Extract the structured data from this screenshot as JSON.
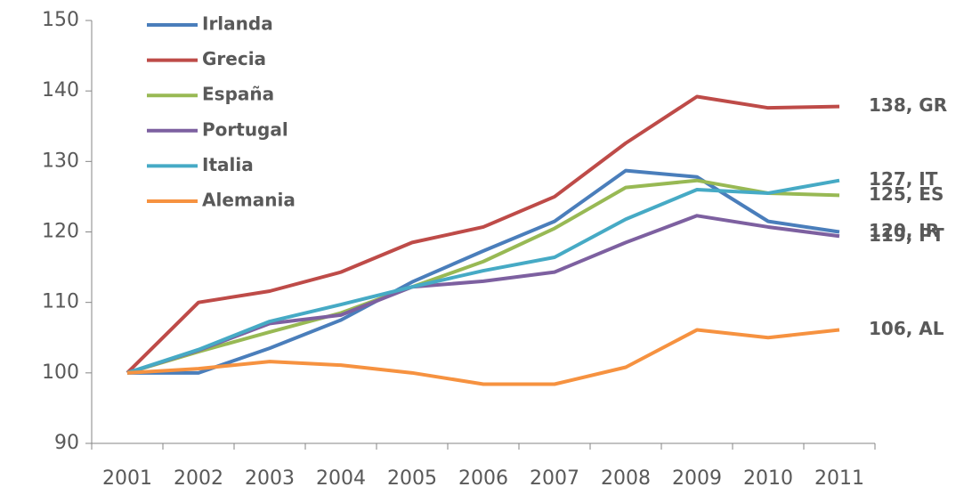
{
  "chart_data": {
    "type": "line",
    "categories": [
      "2001",
      "2002",
      "2003",
      "2004",
      "2005",
      "2006",
      "2007",
      "2008",
      "2009",
      "2010",
      "2011"
    ],
    "series": [
      {
        "name": "Irlanda",
        "color": "#4a7ebb",
        "values": [
          100,
          100,
          103.5,
          107.5,
          112.9,
          117.3,
          121.5,
          128.7,
          127.8,
          121.5,
          120
        ],
        "end_label": "120, IR"
      },
      {
        "name": "Grecia",
        "color": "#be4b48",
        "values": [
          100,
          110,
          111.6,
          114.3,
          118.5,
          120.7,
          125,
          132.6,
          139.2,
          137.6,
          137.8
        ],
        "end_label": "138, GR"
      },
      {
        "name": "España",
        "color": "#98b954",
        "values": [
          100,
          103,
          105.8,
          108.5,
          112.2,
          115.8,
          120.5,
          126.3,
          127.3,
          125.5,
          125.2
        ],
        "end_label": "125, ES"
      },
      {
        "name": "Portugal",
        "color": "#7d60a0",
        "values": [
          100,
          103.2,
          107,
          108.2,
          112.2,
          113,
          114.3,
          118.5,
          122.3,
          120.7,
          119.4
        ],
        "end_label": "119, PT"
      },
      {
        "name": "Italia",
        "color": "#46aac5",
        "values": [
          100,
          103.3,
          107.3,
          109.7,
          112.2,
          114.5,
          116.4,
          121.8,
          126,
          125.5,
          127.3
        ],
        "end_label": "127, IT"
      },
      {
        "name": "Alemania",
        "color": "#f69240",
        "values": [
          100,
          100.6,
          101.6,
          101.1,
          100,
          98.4,
          98.4,
          100.8,
          106.1,
          105,
          106.1
        ],
        "end_label": "106, AL"
      }
    ],
    "ylim": [
      90,
      150
    ],
    "yticks": [
      90,
      100,
      110,
      120,
      130,
      140,
      150
    ],
    "grid": false,
    "legend": "top-left"
  }
}
